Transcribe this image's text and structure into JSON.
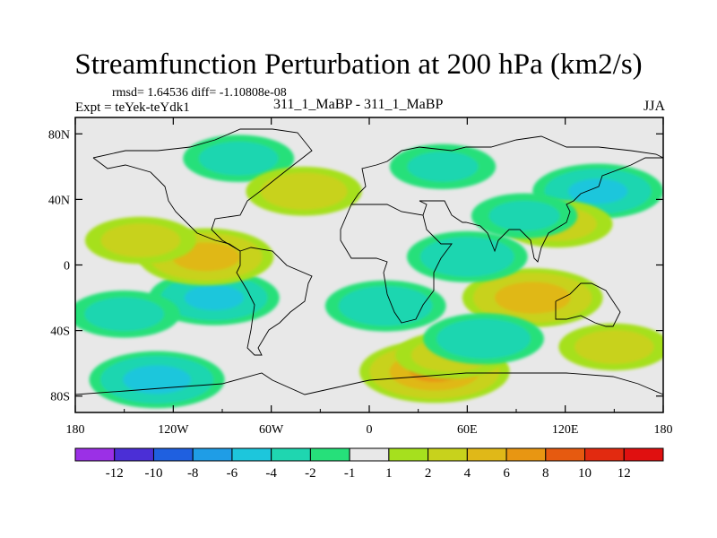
{
  "chart_data": {
    "type": "heatmap",
    "title": "Streamfunction Perturbation at 200 hPa (km2/s)",
    "subtitle": "311_1_MaBP - 311_1_MaBP",
    "stats": "rmsd= 1.64536 diff= -1.10808e-08",
    "experiment": "Expt = teYek-teYdk1",
    "season": "JJA",
    "x_range": [
      -180,
      180
    ],
    "y_range": [
      -90,
      90
    ],
    "x_ticks": [
      "180",
      "120W",
      "60W",
      "0",
      "60E",
      "120E",
      "180"
    ],
    "y_ticks": [
      "80N",
      "40N",
      "0",
      "40S",
      "80S"
    ],
    "colorbar": {
      "labels": [
        "-12",
        "-10",
        "-8",
        "-6",
        "-4",
        "-2",
        "-1",
        "1",
        "2",
        "4",
        "6",
        "8",
        "10",
        "12"
      ],
      "colors": [
        "#9b30e6",
        "#4b2fd6",
        "#1f60e0",
        "#1f9de6",
        "#1dc6dc",
        "#1fd6b0",
        "#26e07a",
        "#e8e8e8",
        "#a6e01e",
        "#c8d21c",
        "#e0b818",
        "#e89612",
        "#e65a10",
        "#e22a10",
        "#e01010"
      ]
    },
    "anomalies": [
      {
        "lon": -130,
        "lat": -70,
        "value": -4.5
      },
      {
        "lon": -95,
        "lat": -20,
        "value": -4
      },
      {
        "lon": -150,
        "lat": -30,
        "value": -2
      },
      {
        "lon": -100,
        "lat": 5,
        "value": 4.5
      },
      {
        "lon": -140,
        "lat": 15,
        "value": 2
      },
      {
        "lon": -80,
        "lat": 65,
        "value": -2
      },
      {
        "lon": -40,
        "lat": 45,
        "value": 2.5
      },
      {
        "lon": 40,
        "lat": -65,
        "value": 6
      },
      {
        "lon": 50,
        "lat": -55,
        "value": 2
      },
      {
        "lon": 100,
        "lat": -20,
        "value": 5
      },
      {
        "lon": 60,
        "lat": 5,
        "value": -3
      },
      {
        "lon": 10,
        "lat": -25,
        "value": -3
      },
      {
        "lon": 70,
        "lat": -45,
        "value": -3
      },
      {
        "lon": 150,
        "lat": -50,
        "value": 2
      },
      {
        "lon": 140,
        "lat": 45,
        "value": -4
      },
      {
        "lon": 115,
        "lat": 25,
        "value": 2
      },
      {
        "lon": 45,
        "lat": 60,
        "value": -1.5
      },
      {
        "lon": 95,
        "lat": 30,
        "value": -1.5
      }
    ]
  }
}
